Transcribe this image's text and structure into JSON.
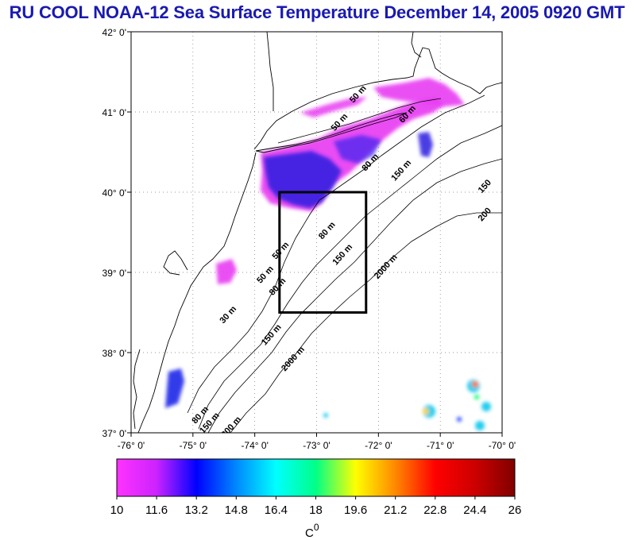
{
  "title": "RU COOL  NOAA-12 Sea Surface Temperature December 14, 2005 0920 GMT",
  "map": {
    "lon_range": [
      -76,
      -70
    ],
    "lat_range": [
      37,
      42
    ],
    "lon_labels": [
      "-76° 0'",
      "-75° 0'",
      "-74° 0'",
      "-73° 0'",
      "-72° 0'",
      "-71° 0'",
      "-70° 0'"
    ],
    "lat_labels": [
      "42° 0'",
      "41° 0'",
      "40° 0'",
      "39° 0'",
      "38° 0'",
      "37° 0'"
    ],
    "lon_ticks": [
      -76,
      -75,
      -74,
      -73,
      -72,
      -71,
      -70
    ],
    "lat_ticks": [
      42,
      41,
      40,
      39,
      38,
      37
    ],
    "study_box": {
      "lon_min": -73.6,
      "lon_max": -72.2,
      "lat_min": 38.5,
      "lat_max": 40.0
    },
    "contour_labels": [
      {
        "text": "50 m",
        "lon": -72.3,
        "lat": 41.2
      },
      {
        "text": "50 m",
        "lon": -72.6,
        "lat": 40.85
      },
      {
        "text": "60 m",
        "lon": -71.5,
        "lat": 40.95
      },
      {
        "text": "80 m",
        "lon": -72.1,
        "lat": 40.35
      },
      {
        "text": "150 m",
        "lon": -71.6,
        "lat": 40.25
      },
      {
        "text": "150",
        "lon": -70.25,
        "lat": 40.05
      },
      {
        "text": "200",
        "lon": -70.25,
        "lat": 39.7
      },
      {
        "text": "50 m",
        "lon": -73.55,
        "lat": 39.25
      },
      {
        "text": "80 m",
        "lon": -72.8,
        "lat": 39.5
      },
      {
        "text": "150 m",
        "lon": -72.55,
        "lat": 39.2
      },
      {
        "text": "2000 m",
        "lon": -71.85,
        "lat": 39.05
      },
      {
        "text": "50 m",
        "lon": -73.8,
        "lat": 38.95
      },
      {
        "text": "80 m",
        "lon": -73.6,
        "lat": 38.8
      },
      {
        "text": "30 m",
        "lon": -74.4,
        "lat": 38.45
      },
      {
        "text": "150 m",
        "lon": -73.7,
        "lat": 38.2
      },
      {
        "text": "2000 m",
        "lon": -73.35,
        "lat": 37.9
      },
      {
        "text": "80 m",
        "lon": -74.85,
        "lat": 37.2
      },
      {
        "text": "150 m",
        "lon": -74.7,
        "lat": 37.1
      },
      {
        "text": "200 m",
        "lon": -74.35,
        "lat": 37.05
      }
    ],
    "colors": {
      "ocean": "#ffffff",
      "land": "#ffffff",
      "coast": "#000000",
      "grid": "#777777"
    }
  },
  "colorbar": {
    "min": 10,
    "max": 26,
    "tick_labels": [
      "10",
      "11.6",
      "13.2",
      "14.8",
      "16.4",
      "18",
      "19.6",
      "21.2",
      "22.8",
      "24.4",
      "26"
    ],
    "unit_label": "C",
    "unit_superscript": "0",
    "stops": [
      "#ff33ff",
      "#cc22ff",
      "#0000ff",
      "#0088ff",
      "#00ffff",
      "#00ff88",
      "#ffff00",
      "#ff8800",
      "#ff0000",
      "#cc0000",
      "#800000"
    ]
  }
}
